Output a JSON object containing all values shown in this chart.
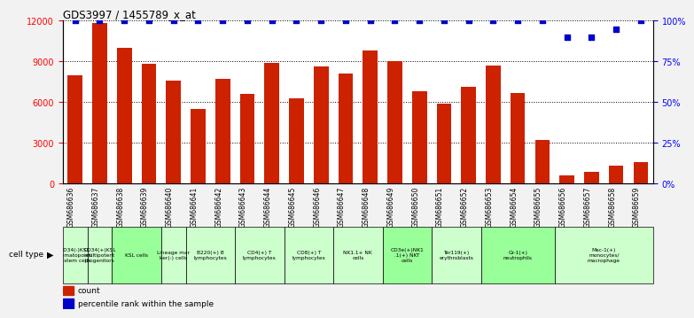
{
  "title": "GDS3997 / 1455789_x_at",
  "gsm_ids": [
    "GSM686636",
    "GSM686637",
    "GSM686638",
    "GSM686639",
    "GSM686640",
    "GSM686641",
    "GSM686642",
    "GSM686643",
    "GSM686644",
    "GSM686645",
    "GSM686646",
    "GSM686647",
    "GSM686648",
    "GSM686649",
    "GSM686650",
    "GSM686651",
    "GSM686652",
    "GSM686653",
    "GSM686654",
    "GSM686655",
    "GSM686656",
    "GSM686657",
    "GSM686658",
    "GSM686659"
  ],
  "counts": [
    8000,
    11800,
    10000,
    8800,
    7600,
    5500,
    7700,
    6600,
    8900,
    6300,
    8600,
    8100,
    9800,
    9000,
    6800,
    5900,
    7100,
    8700,
    6700,
    3200,
    600,
    900,
    1300,
    1600
  ],
  "percentile_ranks": [
    100,
    100,
    100,
    100,
    100,
    100,
    100,
    100,
    100,
    100,
    100,
    100,
    100,
    100,
    100,
    100,
    100,
    100,
    100,
    100,
    90,
    90,
    95,
    100
  ],
  "cell_type_groups": [
    {
      "label": "CD34(-)KSL\nhematopoieti\nc stem cells",
      "start": 0,
      "end": 0,
      "color": "#ccffcc"
    },
    {
      "label": "CD34(+)KSL\nmultipotent\nprogenitors",
      "start": 1,
      "end": 1,
      "color": "#ccffcc"
    },
    {
      "label": "KSL cells",
      "start": 2,
      "end": 3,
      "color": "#99ff99"
    },
    {
      "label": "Lineage mar\nker(-) cells",
      "start": 4,
      "end": 4,
      "color": "#ccffcc"
    },
    {
      "label": "B220(+) B\nlymphocytes",
      "start": 5,
      "end": 6,
      "color": "#ccffcc"
    },
    {
      "label": "CD4(+) T\nlymphocytes",
      "start": 7,
      "end": 8,
      "color": "#ccffcc"
    },
    {
      "label": "CD8(+) T\nlymphocytes",
      "start": 9,
      "end": 10,
      "color": "#ccffcc"
    },
    {
      "label": "NK1.1+ NK\ncells",
      "start": 11,
      "end": 12,
      "color": "#ccffcc"
    },
    {
      "label": "CD3e(+)NK1\n.1(+) NKT\ncells",
      "start": 13,
      "end": 14,
      "color": "#99ff99"
    },
    {
      "label": "Ter119(+)\nerythroblasts",
      "start": 15,
      "end": 16,
      "color": "#ccffcc"
    },
    {
      "label": "Gr-1(+)\nneutrophils",
      "start": 17,
      "end": 19,
      "color": "#99ff99"
    },
    {
      "label": "Mac-1(+)\nmonocytes/\nmacrophage",
      "start": 20,
      "end": 23,
      "color": "#ccffcc"
    }
  ],
  "bar_color": "#cc2200",
  "dot_color": "#0000cc",
  "ylim_left": [
    0,
    12000
  ],
  "ylim_right": [
    0,
    100
  ],
  "yticks_left": [
    0,
    3000,
    6000,
    9000,
    12000
  ],
  "yticks_right": [
    0,
    25,
    50,
    75,
    100
  ],
  "yticklabels_right": [
    "0%",
    "25%",
    "50%",
    "75%",
    "100%"
  ],
  "bar_width": 0.6,
  "bg_color": "#f2f2f2",
  "plot_bg": "#ffffff"
}
